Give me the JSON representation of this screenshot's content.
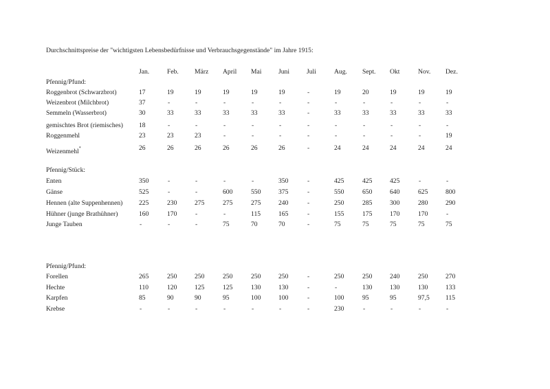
{
  "title": "Durchschnittspreise der \"wichtigsten Lebensbedürfnisse und Verbrauchsgegenstände\" im Jahre 1915:",
  "months": [
    "Jan.",
    "Feb.",
    "März",
    "April",
    "Mai",
    "Juni",
    "Juli",
    "Aug.",
    "Sept.",
    "Okt",
    "Nov.",
    "Dez."
  ],
  "footnote_mark": "*",
  "sections": [
    {
      "heading": "Pfennig/Pfund:",
      "rows": [
        {
          "label": "Roggenbrot (Schwarzbrot)",
          "values": [
            "17",
            "19",
            "19",
            "19",
            "19",
            "19",
            "-",
            "19",
            "20",
            "19",
            "19",
            "19"
          ]
        },
        {
          "label": "Weizenbrot (Milchbrot)",
          "values": [
            "37",
            "-",
            "-",
            "-",
            "-",
            "-",
            "-",
            "-",
            "-",
            "-",
            "-",
            "-"
          ]
        },
        {
          "label": "Semmeln (Wasserbrot)",
          "values": [
            "30",
            "33",
            "33",
            "33",
            "33",
            "33",
            "-",
            "33",
            "33",
            "33",
            "33",
            "33"
          ]
        },
        {
          "label": "gemischtes Brot (riemisches)",
          "values": [
            "18",
            "-",
            "-",
            "-",
            "-",
            "-",
            "-",
            "-",
            "-",
            "-",
            "-",
            "-"
          ]
        },
        {
          "label": "Roggenmehl",
          "values": [
            "23",
            "23",
            "23",
            "-",
            "-",
            "-",
            "-",
            "-",
            "-",
            "-",
            "-",
            "19"
          ]
        },
        {
          "label": "Weizenmehl",
          "values": [
            "26",
            "26",
            "26",
            "26",
            "26",
            "26",
            "-",
            "24",
            "24",
            "24",
            "24",
            "24"
          ],
          "footnote": true
        }
      ]
    },
    {
      "heading": "Pfennig/Stück:",
      "rows": [
        {
          "label": "Enten",
          "values": [
            "350",
            "-",
            "-",
            "-",
            "-",
            "350",
            "-",
            "425",
            "425",
            "425",
            "-",
            "-"
          ]
        },
        {
          "label": "Gänse",
          "values": [
            "525",
            "-",
            "-",
            "600",
            "550",
            "375",
            "-",
            "550",
            "650",
            "640",
            "625",
            "800"
          ]
        },
        {
          "label": "Hennen (alte Suppenhennen)",
          "values": [
            "225",
            "230",
            "275",
            "275",
            "275",
            "240",
            "-",
            "250",
            "285",
            "300",
            "280",
            "290"
          ]
        },
        {
          "label": "Hühner (junge Brathühner)",
          "values": [
            "160",
            "170",
            "-",
            "-",
            "115",
            "165",
            "-",
            "155",
            "175",
            "170",
            "170",
            "-"
          ]
        },
        {
          "label": "Junge Tauben",
          "values": [
            "-",
            "-",
            "-",
            "75",
            "70",
            "70",
            "-",
            "75",
            "75",
            "75",
            "75",
            "75"
          ]
        }
      ]
    },
    {
      "heading": "Pfennig/Pfund:",
      "rows": [
        {
          "label": "Forellen",
          "values": [
            "265",
            "250",
            "250",
            "250",
            "250",
            "250",
            "-",
            "250",
            "250",
            "240",
            "250",
            "270"
          ]
        },
        {
          "label": "Hechte",
          "values": [
            "110",
            "120",
            "125",
            "125",
            "130",
            "130",
            "-",
            "-",
            "130",
            "130",
            "130",
            "133"
          ]
        },
        {
          "label": "Karpfen",
          "values": [
            "85",
            "90",
            "90",
            "95",
            "100",
            "100",
            "-",
            "100",
            "95",
            "95",
            "97,5",
            "115"
          ]
        },
        {
          "label": "Krebse",
          "values": [
            "-",
            "-",
            "-",
            "-",
            "-",
            "-",
            "-",
            "230",
            "-",
            "-",
            "-",
            "-"
          ]
        }
      ]
    }
  ]
}
